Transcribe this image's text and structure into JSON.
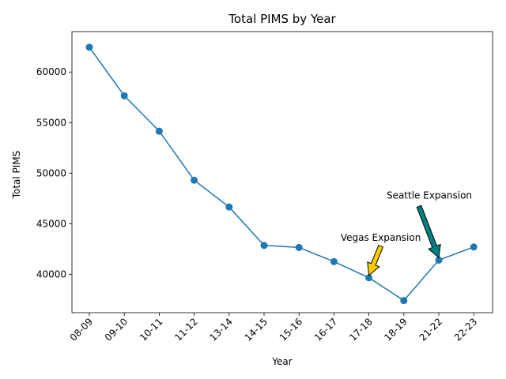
{
  "chart_data": {
    "type": "line",
    "title": "Total PIMS by Year",
    "xlabel": "Year",
    "ylabel": "Total PIMS",
    "categories": [
      "08-09",
      "09-10",
      "10-11",
      "11-12",
      "13-14",
      "14-15",
      "15-16",
      "16-17",
      "17-18",
      "18-19",
      "21-22",
      "22-23"
    ],
    "series": [
      {
        "values": [
          62450,
          57650,
          54150,
          49300,
          46650,
          42850,
          42650,
          41250,
          39650,
          37400,
          41400,
          42700
        ],
        "color": "#1f77b4"
      }
    ],
    "ylim": [
      36200,
      64000
    ],
    "yticks": [
      40000,
      45000,
      50000,
      55000,
      60000
    ],
    "grid": false,
    "legend": "none",
    "annotations": [
      {
        "text": "Vegas Expansion",
        "category": "17-18",
        "arrow_color": "#ffcc00"
      },
      {
        "text": "Seattle Expansion",
        "category": "21-22",
        "arrow_color": "#008080"
      }
    ]
  }
}
